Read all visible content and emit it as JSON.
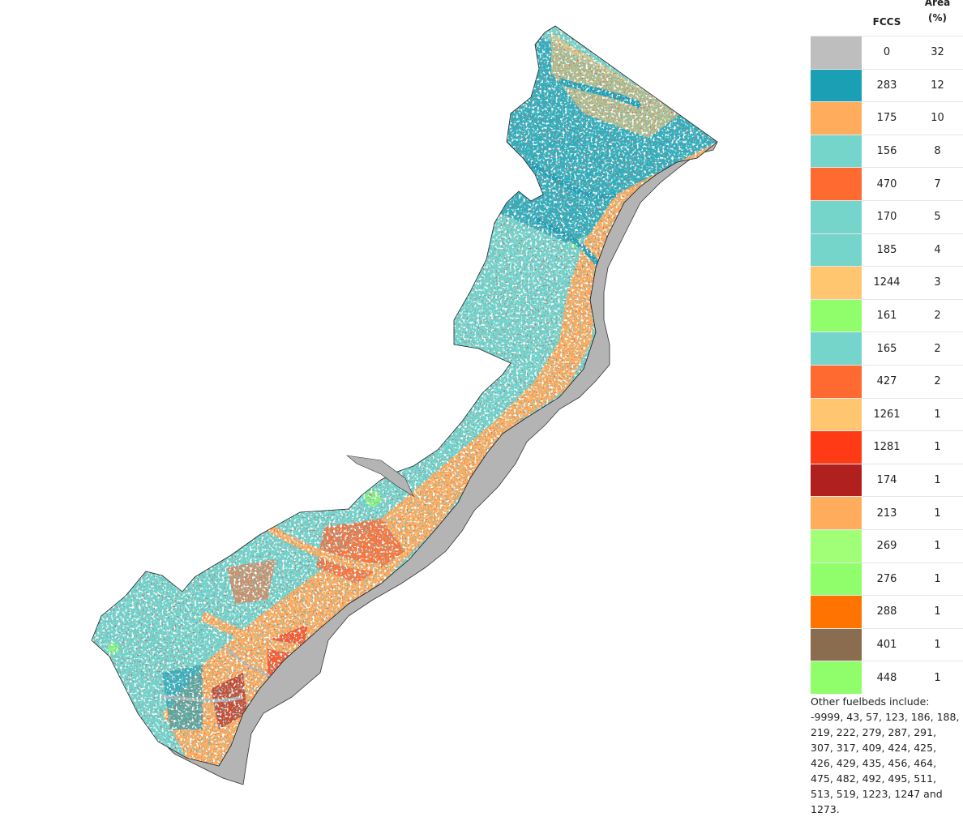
{
  "legend": {
    "col_code": "FCCS",
    "col_area_line1": "Area",
    "col_area_line2": "(%)",
    "rows": [
      {
        "code": "0",
        "pct": "32",
        "color": "#bebebe"
      },
      {
        "code": "283",
        "pct": "12",
        "color": "#1a9fb5"
      },
      {
        "code": "175",
        "pct": "10",
        "color": "#ffad5c"
      },
      {
        "code": "156",
        "pct": "8",
        "color": "#75d5cb"
      },
      {
        "code": "470",
        "pct": "7",
        "color": "#ff6a30"
      },
      {
        "code": "170",
        "pct": "5",
        "color": "#75d5cb"
      },
      {
        "code": "185",
        "pct": "4",
        "color": "#75d5cb"
      },
      {
        "code": "1244",
        "pct": "3",
        "color": "#ffc56f"
      },
      {
        "code": "161",
        "pct": "2",
        "color": "#8ffe6a"
      },
      {
        "code": "165",
        "pct": "2",
        "color": "#75d5cb"
      },
      {
        "code": "427",
        "pct": "2",
        "color": "#ff6a30"
      },
      {
        "code": "1261",
        "pct": "1",
        "color": "#ffc56f"
      },
      {
        "code": "1281",
        "pct": "1",
        "color": "#ff3b16"
      },
      {
        "code": "174",
        "pct": "1",
        "color": "#b0201e"
      },
      {
        "code": "213",
        "pct": "1",
        "color": "#ffad5c"
      },
      {
        "code": "269",
        "pct": "1",
        "color": "#a0ff77"
      },
      {
        "code": "276",
        "pct": "1",
        "color": "#8ffe6a"
      },
      {
        "code": "288",
        "pct": "1",
        "color": "#ff7300"
      },
      {
        "code": "401",
        "pct": "1",
        "color": "#8a6c4f"
      },
      {
        "code": "448",
        "pct": "1",
        "color": "#8ffe6a"
      }
    ],
    "note": "Other fuelbeds include: -9999, 43, 57, 123, 186, 188, 219, 222, 279, 287, 291, 307, 317, 409, 424, 425, 426, 429, 435, 456, 464, 475, 482, 492, 495, 511, 513, 519, 1223, 1247 and 1273."
  }
}
